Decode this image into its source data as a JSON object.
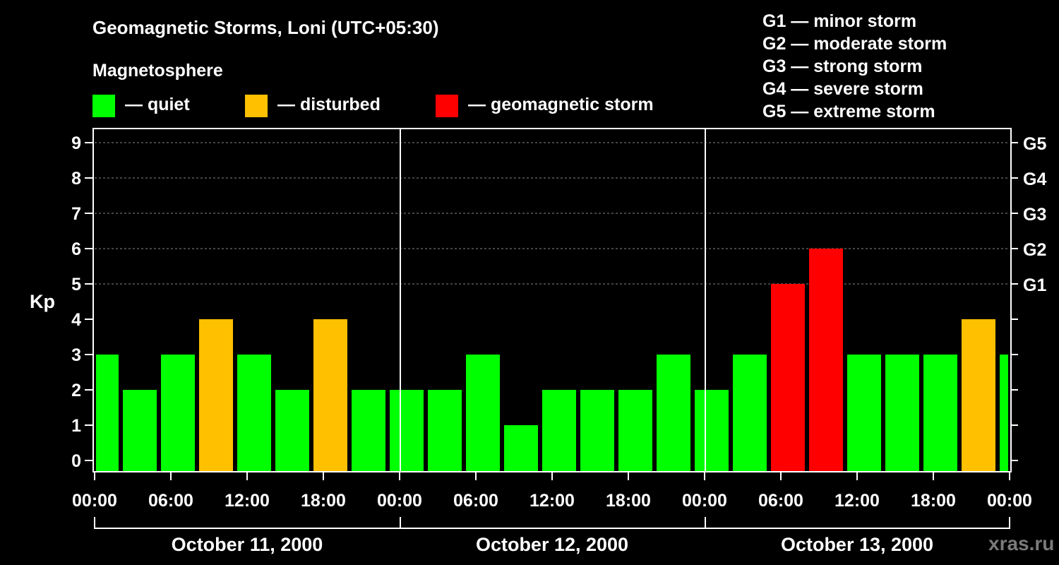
{
  "chart_data": {
    "type": "bar",
    "title": "Geomagnetic Storms, Loni (UTC+05:30)",
    "subtitle": "Magnetosphere",
    "ylabel": "Kp",
    "ylim": [
      0,
      9
    ],
    "yticks": [
      "0",
      "1",
      "2",
      "3",
      "4",
      "5",
      "6",
      "7",
      "8",
      "9"
    ],
    "right_ticks": [
      {
        "kp": 5,
        "label": "G1"
      },
      {
        "kp": 6,
        "label": "G2"
      },
      {
        "kp": 7,
        "label": "G3"
      },
      {
        "kp": 8,
        "label": "G4"
      },
      {
        "kp": 9,
        "label": "G5"
      }
    ],
    "xticks": [
      "00:00",
      "06:00",
      "12:00",
      "18:00",
      "00:00",
      "06:00",
      "12:00",
      "18:00",
      "00:00",
      "06:00",
      "12:00",
      "18:00",
      "00:00"
    ],
    "days": [
      "October 11, 2000",
      "October 12, 2000",
      "October 13, 2000"
    ],
    "values": [
      3,
      2,
      3,
      4,
      3,
      2,
      4,
      2,
      2,
      2,
      3,
      1,
      2,
      2,
      2,
      3,
      2,
      3,
      5,
      6,
      3,
      3,
      3,
      4,
      3
    ],
    "legend": [
      {
        "label": "— quiet",
        "color": "#00ff00"
      },
      {
        "label": "— disturbed",
        "color": "#ffc000"
      },
      {
        "label": "— geomagnetic storm",
        "color": "#ff0000"
      }
    ],
    "scale": [
      "G1 — minor storm",
      "G2 — moderate storm",
      "G3 — strong storm",
      "G4 — severe storm",
      "G5 — extreme storm"
    ],
    "grid": true
  },
  "watermark": "xras.ru"
}
